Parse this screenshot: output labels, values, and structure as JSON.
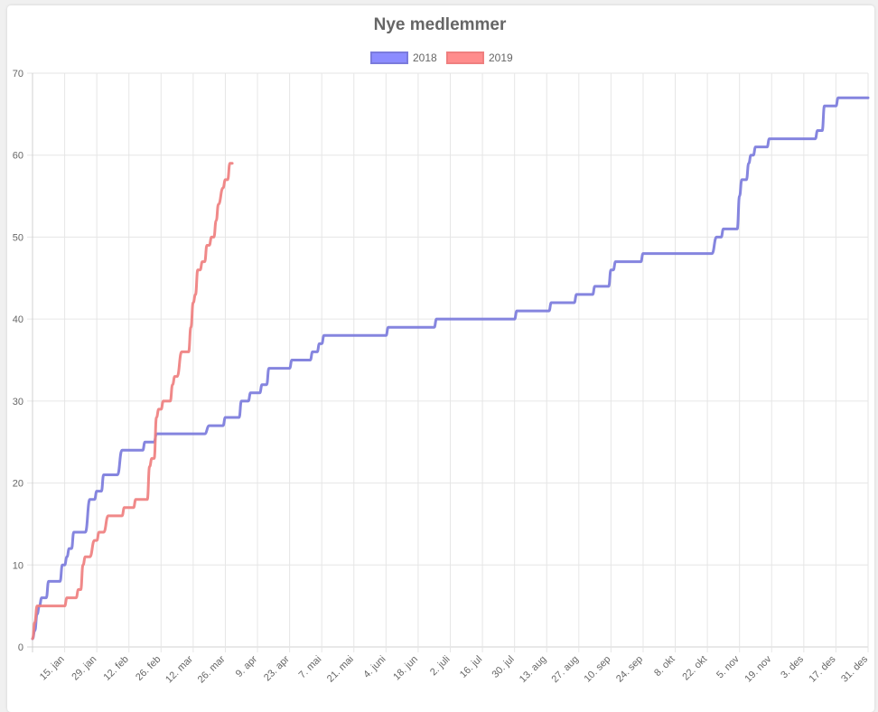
{
  "chart_data": {
    "type": "line",
    "title": "Nye medlemmer",
    "legend_position": "top",
    "grid": true,
    "ylim": [
      0,
      70
    ],
    "y_ticks": [
      0,
      10,
      20,
      30,
      40,
      50,
      60,
      70
    ],
    "x_range_days": [
      1,
      365
    ],
    "x_ticks": [
      {
        "day": 15,
        "label": "15. jan"
      },
      {
        "day": 29,
        "label": "29. jan"
      },
      {
        "day": 43,
        "label": "12. feb"
      },
      {
        "day": 57,
        "label": "26. feb"
      },
      {
        "day": 71,
        "label": "12. mar"
      },
      {
        "day": 85,
        "label": "26. mar"
      },
      {
        "day": 99,
        "label": "9. apr"
      },
      {
        "day": 113,
        "label": "23. apr"
      },
      {
        "day": 127,
        "label": "7. mai"
      },
      {
        "day": 141,
        "label": "21. mai"
      },
      {
        "day": 155,
        "label": "4. juni"
      },
      {
        "day": 169,
        "label": "18. jun"
      },
      {
        "day": 183,
        "label": "2. juli"
      },
      {
        "day": 197,
        "label": "16. jul"
      },
      {
        "day": 211,
        "label": "30. jul"
      },
      {
        "day": 225,
        "label": "13. aug"
      },
      {
        "day": 239,
        "label": "27. aug"
      },
      {
        "day": 253,
        "label": "10. sep"
      },
      {
        "day": 267,
        "label": "24. sep"
      },
      {
        "day": 281,
        "label": "8. okt"
      },
      {
        "day": 295,
        "label": "22. okt"
      },
      {
        "day": 309,
        "label": "5. nov"
      },
      {
        "day": 323,
        "label": "19. nov"
      },
      {
        "day": 337,
        "label": "3. des"
      },
      {
        "day": 351,
        "label": "17. des"
      },
      {
        "day": 365,
        "label": "31. des"
      }
    ],
    "series": [
      {
        "name": "2018",
        "color": "#7b7bdc",
        "fill": "#8c8cff",
        "points": [
          [
            1,
            1
          ],
          [
            2,
            2
          ],
          [
            3,
            4
          ],
          [
            4,
            5
          ],
          [
            5,
            6
          ],
          [
            7,
            6
          ],
          [
            8,
            8
          ],
          [
            13,
            8
          ],
          [
            14,
            10
          ],
          [
            15,
            10
          ],
          [
            16,
            11
          ],
          [
            17,
            12
          ],
          [
            18,
            12
          ],
          [
            19,
            14
          ],
          [
            24,
            14
          ],
          [
            26,
            18
          ],
          [
            28,
            18
          ],
          [
            29,
            19
          ],
          [
            31,
            19
          ],
          [
            32,
            21
          ],
          [
            38,
            21
          ],
          [
            40,
            24
          ],
          [
            49,
            24
          ],
          [
            50,
            25
          ],
          [
            54,
            25
          ],
          [
            55,
            26
          ],
          [
            76,
            26
          ],
          [
            78,
            27
          ],
          [
            84,
            27
          ],
          [
            85,
            28
          ],
          [
            91,
            28
          ],
          [
            92,
            30
          ],
          [
            95,
            30
          ],
          [
            96,
            31
          ],
          [
            100,
            31
          ],
          [
            101,
            32
          ],
          [
            103,
            32
          ],
          [
            104,
            34
          ],
          [
            113,
            34
          ],
          [
            114,
            35
          ],
          [
            122,
            35
          ],
          [
            123,
            36
          ],
          [
            125,
            36
          ],
          [
            126,
            37
          ],
          [
            127,
            37
          ],
          [
            128,
            38
          ],
          [
            155,
            38
          ],
          [
            156,
            39
          ],
          [
            176,
            39
          ],
          [
            177,
            40
          ],
          [
            211,
            40
          ],
          [
            212,
            41
          ],
          [
            226,
            41
          ],
          [
            227,
            42
          ],
          [
            237,
            42
          ],
          [
            238,
            43
          ],
          [
            245,
            43
          ],
          [
            246,
            44
          ],
          [
            252,
            44
          ],
          [
            253,
            46
          ],
          [
            254,
            46
          ],
          [
            255,
            47
          ],
          [
            266,
            47
          ],
          [
            267,
            48
          ],
          [
            297,
            48
          ],
          [
            299,
            50
          ],
          [
            301,
            50
          ],
          [
            302,
            51
          ],
          [
            308,
            51
          ],
          [
            309,
            55
          ],
          [
            310,
            57
          ],
          [
            312,
            57
          ],
          [
            313,
            59
          ],
          [
            314,
            60
          ],
          [
            315,
            60
          ],
          [
            316,
            61
          ],
          [
            321,
            61
          ],
          [
            322,
            62
          ],
          [
            342,
            62
          ],
          [
            343,
            63
          ],
          [
            345,
            63
          ],
          [
            346,
            66
          ],
          [
            351,
            66
          ],
          [
            352,
            67
          ],
          [
            365,
            67
          ]
        ]
      },
      {
        "name": "2019",
        "color": "#ef7f7f",
        "fill": "#ff8c8c",
        "points": [
          [
            1,
            1
          ],
          [
            2,
            3
          ],
          [
            3,
            5
          ],
          [
            15,
            5
          ],
          [
            16,
            6
          ],
          [
            20,
            6
          ],
          [
            21,
            7
          ],
          [
            22,
            7
          ],
          [
            23,
            10
          ],
          [
            24,
            11
          ],
          [
            26,
            11
          ],
          [
            28,
            13
          ],
          [
            29,
            13
          ],
          [
            30,
            14
          ],
          [
            32,
            14
          ],
          [
            34,
            16
          ],
          [
            40,
            16
          ],
          [
            41,
            17
          ],
          [
            45,
            17
          ],
          [
            46,
            18
          ],
          [
            51,
            18
          ],
          [
            52,
            22
          ],
          [
            53,
            23
          ],
          [
            54,
            23
          ],
          [
            55,
            28
          ],
          [
            56,
            29
          ],
          [
            57,
            29
          ],
          [
            58,
            30
          ],
          [
            61,
            30
          ],
          [
            62,
            32
          ],
          [
            63,
            33
          ],
          [
            64,
            33
          ],
          [
            66,
            36
          ],
          [
            69,
            36
          ],
          [
            70,
            39
          ],
          [
            71,
            42
          ],
          [
            72,
            43
          ],
          [
            73,
            46
          ],
          [
            74,
            46
          ],
          [
            75,
            47
          ],
          [
            76,
            47
          ],
          [
            77,
            49
          ],
          [
            78,
            49
          ],
          [
            79,
            50
          ],
          [
            80,
            50
          ],
          [
            81,
            52
          ],
          [
            82,
            54
          ],
          [
            84,
            56
          ],
          [
            85,
            57
          ],
          [
            86,
            57
          ],
          [
            87,
            59
          ],
          [
            88,
            59
          ]
        ]
      }
    ]
  }
}
